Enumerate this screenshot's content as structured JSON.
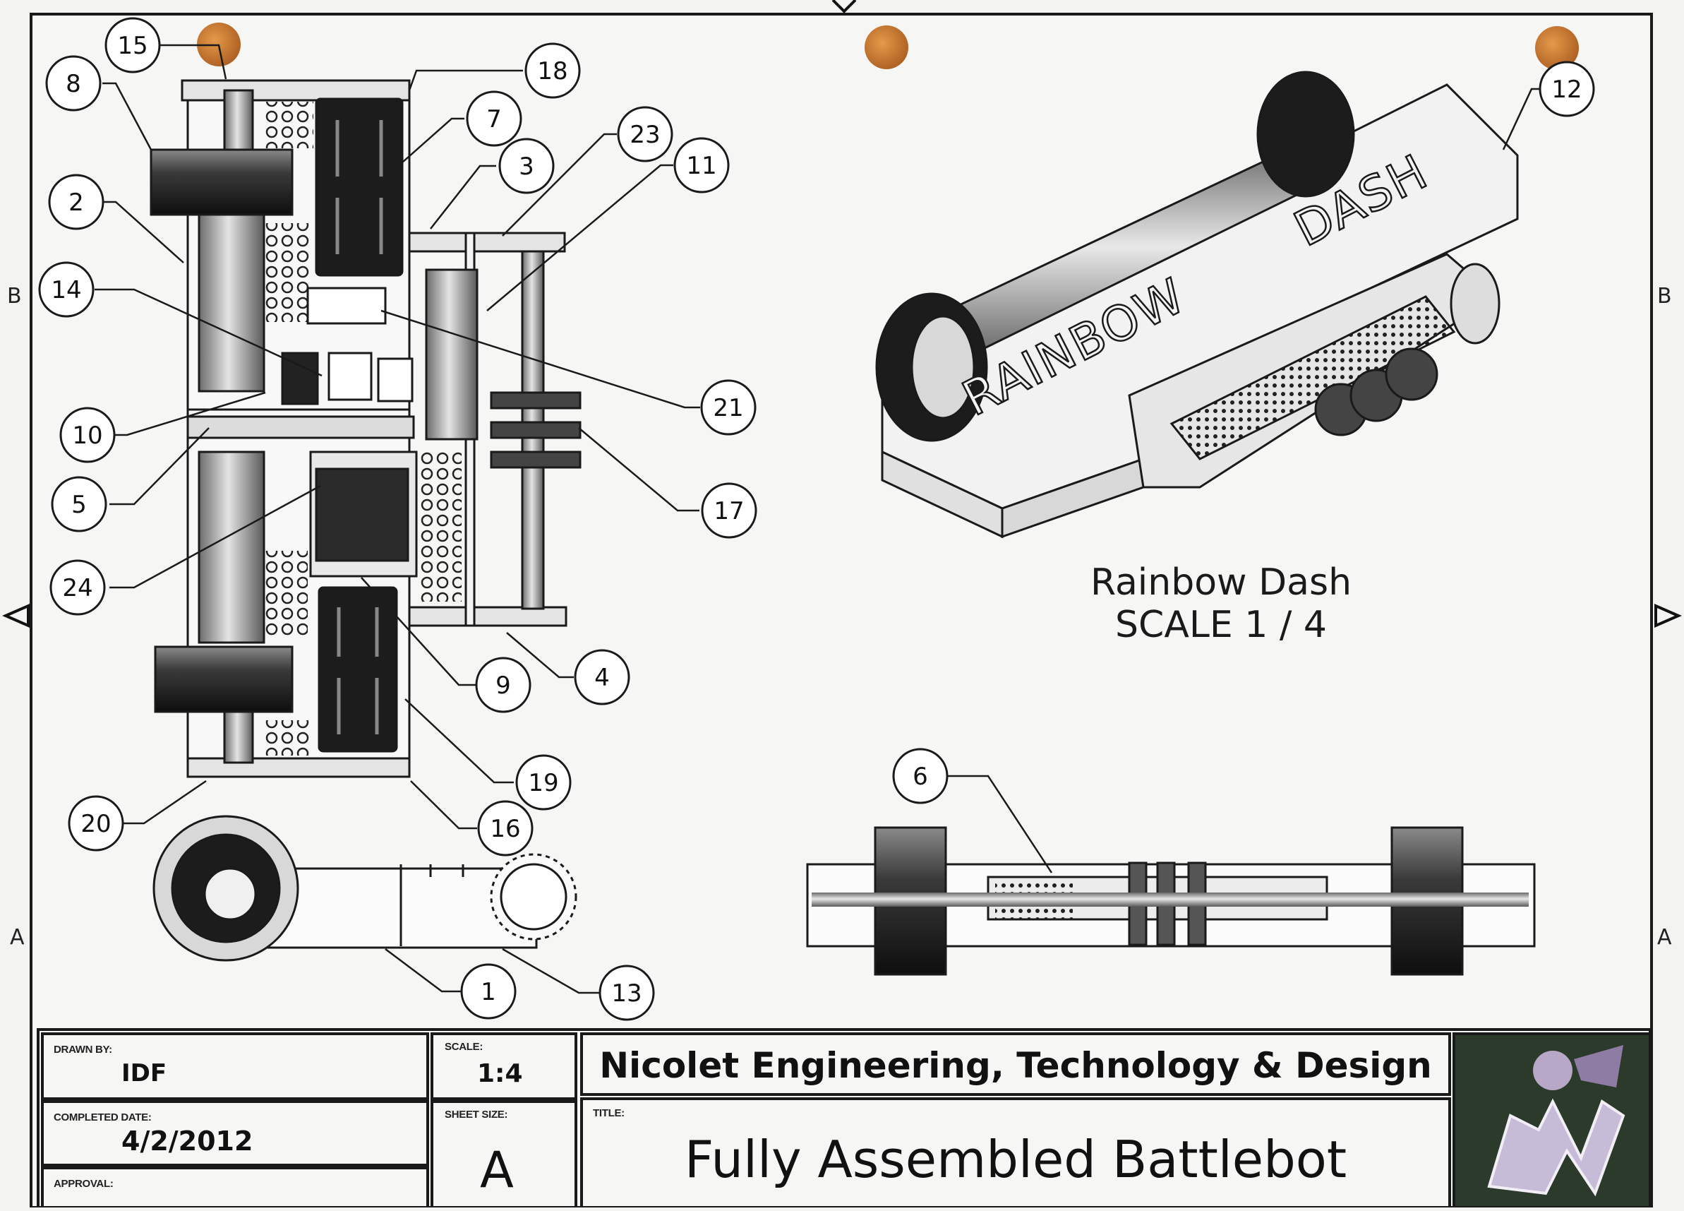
{
  "zones": {
    "left_b": "B",
    "left_a": "A",
    "right_b": "B",
    "right_a": "A"
  },
  "balloons": [
    "15",
    "8",
    "2",
    "14",
    "10",
    "5",
    "24",
    "20",
    "18",
    "7",
    "3",
    "23",
    "11",
    "21",
    "17",
    "4",
    "9",
    "19",
    "16",
    "1",
    "13",
    "12",
    "6"
  ],
  "view_caption": {
    "name": "Rainbow Dash",
    "scale": "SCALE 1 / 4"
  },
  "engraving": {
    "word1": "RAINBOW",
    "word2": "DASH"
  },
  "title_block": {
    "drawn_by_label": "DRAWN BY:",
    "drawn_by": "IDF",
    "completed_label": "COMPLETED DATE:",
    "completed": "4/2/2012",
    "approval_label": "APPROVAL:",
    "scale_label": "SCALE:",
    "scale": "1:4",
    "sheet_size_label": "SHEET SIZE:",
    "sheet_size": "A",
    "organization": "Nicolet Engineering, Technology & Design",
    "title_label": "TITLE:",
    "title": "Fully Assembled Battlebot"
  },
  "colors": {
    "line": "#1a1a1a",
    "metal": "#9a9a9a",
    "dark": "#1f1f1f",
    "dot": "#c8742a",
    "logo_bg": "#2a3a2a"
  }
}
